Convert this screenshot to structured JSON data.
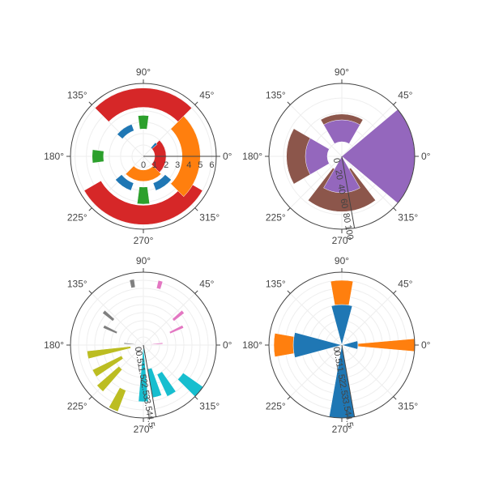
{
  "chart_data": [
    {
      "type": "barpolar",
      "panel": "top-left",
      "radial_ticks": [
        "0",
        "1",
        "2",
        "3",
        "4",
        "5",
        "6"
      ],
      "radial_range": [
        0,
        6.4
      ],
      "radial_tick_angle_deg": 0,
      "angular_ticks": [
        "0°",
        "45°",
        "90°",
        "135°",
        "180°",
        "225°",
        "270°",
        "315°"
      ],
      "series": [
        {
          "color": "#d62728",
          "bars": [
            {
              "theta": 0,
              "base": 1,
              "r": 2,
              "width": 90
            },
            {
              "theta": 90,
              "base": 4.3,
              "r": 6,
              "width": 90
            },
            {
              "theta": 270,
              "base": 4.3,
              "r": 6,
              "width": 120
            }
          ]
        },
        {
          "color": "#ff7f0e",
          "bars": [
            {
              "theta": 0,
              "base": 3.4,
              "r": 5,
              "width": 90
            },
            {
              "theta": 270,
              "base": 1.2,
              "r": 2.2,
              "width": 90
            }
          ]
        },
        {
          "color": "#2ca02c",
          "bars": [
            {
              "theta": 90,
              "base": 2.4,
              "r": 3.6,
              "width": 15
            },
            {
              "theta": 180,
              "base": 3.5,
              "r": 4.5,
              "width": 15
            },
            {
              "theta": 270,
              "base": 2.7,
              "r": 4.2,
              "width": 15
            }
          ]
        },
        {
          "color": "#1f77b4",
          "bars": [
            {
              "theta": 45,
              "base": 1,
              "r": 1.6,
              "width": 8
            },
            {
              "theta": 125,
              "base": 2.4,
              "r": 3,
              "width": 30
            },
            {
              "theta": 235,
              "base": 2.5,
              "r": 3.2,
              "width": 30
            },
            {
              "theta": 305,
              "base": 2.5,
              "r": 3.2,
              "width": 30
            }
          ]
        }
      ]
    },
    {
      "type": "barpolar",
      "panel": "top-right",
      "radial_ticks": [
        "0",
        "20",
        "40",
        "60",
        "80",
        "100"
      ],
      "radial_range": [
        0,
        100
      ],
      "radial_tick_angle_deg": -80,
      "angular_ticks": [
        "0°",
        "45°",
        "90°",
        "135°",
        "180°",
        "225°",
        "270°",
        "315°"
      ],
      "series": [
        {
          "color": "#8c564b",
          "bars": [
            {
              "theta": 90,
              "base": 20,
              "r": 58,
              "width": 60
            },
            {
              "theta": 180,
              "base": 20,
              "r": 76,
              "width": 60
            },
            {
              "theta": 270,
              "base": 20,
              "r": 76,
              "width": 75
            }
          ]
        },
        {
          "color": "#9467bd",
          "bars": [
            {
              "theta": 0,
              "base": 0,
              "r": 100,
              "width": 80
            },
            {
              "theta": 90,
              "base": 20,
              "r": 50,
              "width": 60
            },
            {
              "theta": 180,
              "base": 20,
              "r": 50,
              "width": 60
            },
            {
              "theta": 270,
              "base": 0,
              "r": 50,
              "width": 60
            }
          ]
        }
      ]
    },
    {
      "type": "barpolar",
      "panel": "bottom-left",
      "radial_ticks": [
        "0",
        "0.5",
        "1",
        "1.5",
        "2",
        "2.5",
        "3",
        "3.5",
        "4",
        "4.5"
      ],
      "radial_range": [
        0,
        4.5
      ],
      "radial_tick_angle_deg": -80,
      "angular_ticks": [
        "0°",
        "45°",
        "90°",
        "135°",
        "180°",
        "225°",
        "270°",
        "315°"
      ],
      "series": [
        {
          "color": "#e377c2",
          "bars": [
            {
              "theta": 5,
              "base": 0.5,
              "r": 1.2,
              "width": 4
            },
            {
              "theta": 25,
              "base": 1.8,
              "r": 2.7,
              "width": 4
            },
            {
              "theta": 40,
              "base": 2.4,
              "r": 3.2,
              "width": 4
            },
            {
              "theta": 75,
              "base": 3.6,
              "r": 4.1,
              "width": 4
            }
          ]
        },
        {
          "color": "#7f7f7f",
          "bars": [
            {
              "theta": 100,
              "base": 3.6,
              "r": 4.1,
              "width": 4
            },
            {
              "theta": 140,
              "base": 2.4,
              "r": 3.2,
              "width": 4
            },
            {
              "theta": 155,
              "base": 1.8,
              "r": 2.7,
              "width": 4
            },
            {
              "theta": 175,
              "base": 0.5,
              "r": 1.2,
              "width": 4
            }
          ]
        },
        {
          "color": "#bcbd22",
          "bars": [
            {
              "theta": 190,
              "base": 0.8,
              "r": 3.5,
              "width": 8
            },
            {
              "theta": 210,
              "base": 1.5,
              "r": 3.5,
              "width": 8
            },
            {
              "theta": 225,
              "base": 2,
              "r": 3.8,
              "width": 8
            },
            {
              "theta": 245,
              "base": 3,
              "r": 4.4,
              "width": 8
            }
          ]
        },
        {
          "color": "#17becf",
          "bars": [
            {
              "theta": 270,
              "base": 0,
              "r": 3.5,
              "width": 10
            },
            {
              "theta": 285,
              "base": 1.5,
              "r": 3.3,
              "width": 10
            },
            {
              "theta": 300,
              "base": 2,
              "r": 3.5,
              "width": 10
            },
            {
              "theta": 320,
              "base": 3,
              "r": 4.5,
              "width": 10
            }
          ]
        }
      ]
    },
    {
      "type": "barpolar",
      "panel": "bottom-right",
      "radial_ticks": [
        "0",
        "0.5",
        "1",
        "1.5",
        "2",
        "2.5",
        "3",
        "3.5",
        "4",
        "4.5"
      ],
      "radial_range": [
        0,
        4.5
      ],
      "radial_tick_angle_deg": -80,
      "angular_ticks": [
        "0°",
        "45°",
        "90°",
        "135°",
        "180°",
        "225°",
        "270°",
        "315°"
      ],
      "series": [
        {
          "color": "#1f77b4",
          "bars": [
            {
              "theta": 0,
              "base": 0,
              "r": 1,
              "width": 30
            },
            {
              "theta": 90,
              "base": 0,
              "r": 2.5,
              "width": 30
            },
            {
              "theta": 180,
              "base": 0,
              "r": 3,
              "width": 30
            },
            {
              "theta": 270,
              "base": 0,
              "r": 4.5,
              "width": 20
            }
          ]
        },
        {
          "color": "#ff7f0e",
          "bars": [
            {
              "theta": 0,
              "base": 1,
              "r": 4.5,
              "width": 10
            },
            {
              "theta": 90,
              "base": 2.5,
              "r": 4,
              "width": 20
            },
            {
              "theta": 180,
              "base": 3,
              "r": 4.2,
              "width": 20
            }
          ]
        }
      ]
    }
  ]
}
